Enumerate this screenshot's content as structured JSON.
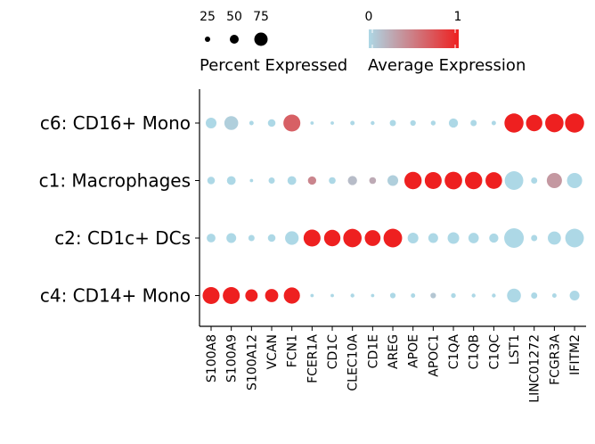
{
  "chart_data": {
    "type": "dotplot",
    "categories_x": [
      "S100A8",
      "S100A9",
      "S100A12",
      "VCAN",
      "FCN1",
      "FCER1A",
      "CD1C",
      "CLEC10A",
      "CD1E",
      "AREG",
      "APOE",
      "APOC1",
      "C1QA",
      "C1QB",
      "C1QC",
      "LST1",
      "LINC01272",
      "FCGR3A",
      "IFITM2"
    ],
    "categories_y": [
      "c6: CD16+ Mono",
      "c1: Macrophages",
      "c2: CD1c+ DCs",
      "c4: CD14+ Mono"
    ],
    "color_scale": {
      "low": "#add8e6",
      "high": "#ee2020",
      "min": 0,
      "max": 1
    },
    "size_scale": {
      "breaks": [
        25,
        50,
        75
      ],
      "max_percent": 100
    },
    "legend": {
      "size_title": "Percent Expressed",
      "size_labels": [
        "25",
        "50",
        "75"
      ],
      "color_title": "Average Expression",
      "color_labels": [
        "0",
        "1"
      ],
      "position": "top"
    },
    "points": [
      {
        "cluster": "c6: CD16+ Mono",
        "values": [
          [
            30,
            0.0
          ],
          [
            50,
            0.05
          ],
          [
            5,
            0.0
          ],
          [
            15,
            0.0
          ],
          [
            75,
            0.65
          ],
          [
            3,
            0.0
          ],
          [
            3,
            0.0
          ],
          [
            5,
            0.0
          ],
          [
            4,
            0.0
          ],
          [
            10,
            0.0
          ],
          [
            8,
            0.0
          ],
          [
            6,
            0.0
          ],
          [
            22,
            0.0
          ],
          [
            10,
            0.0
          ],
          [
            5,
            0.0
          ],
          [
            95,
            1.0
          ],
          [
            70,
            1.0
          ],
          [
            88,
            1.0
          ],
          [
            95,
            1.0
          ]
        ]
      },
      {
        "cluster": "c1: Macrophages",
        "values": [
          [
            15,
            0.0
          ],
          [
            20,
            0.0
          ],
          [
            3,
            0.0
          ],
          [
            10,
            0.0
          ],
          [
            20,
            0.0
          ],
          [
            18,
            0.45
          ],
          [
            12,
            0.0
          ],
          [
            22,
            0.15
          ],
          [
            12,
            0.25
          ],
          [
            30,
            0.05
          ],
          [
            78,
            1.0
          ],
          [
            75,
            1.0
          ],
          [
            80,
            1.0
          ],
          [
            78,
            1.0
          ],
          [
            72,
            1.0
          ],
          [
            90,
            0.0
          ],
          [
            10,
            0.0
          ],
          [
            60,
            0.35
          ],
          [
            60,
            0.0
          ]
        ]
      },
      {
        "cluster": "c2: CD1c+ DCs",
        "values": [
          [
            20,
            0.0
          ],
          [
            25,
            0.0
          ],
          [
            10,
            0.0
          ],
          [
            15,
            0.0
          ],
          [
            48,
            0.0
          ],
          [
            75,
            1.0
          ],
          [
            70,
            1.0
          ],
          [
            88,
            1.0
          ],
          [
            65,
            1.0
          ],
          [
            90,
            1.0
          ],
          [
            30,
            0.0
          ],
          [
            25,
            0.0
          ],
          [
            35,
            0.0
          ],
          [
            28,
            0.0
          ],
          [
            22,
            0.0
          ],
          [
            100,
            0.0
          ],
          [
            10,
            0.0
          ],
          [
            45,
            0.0
          ],
          [
            90,
            0.0
          ]
        ]
      },
      {
        "cluster": "c4: CD14+ Mono",
        "values": [
          [
            75,
            1.0
          ],
          [
            75,
            1.0
          ],
          [
            40,
            1.0
          ],
          [
            45,
            1.0
          ],
          [
            68,
            1.0
          ],
          [
            3,
            0.0
          ],
          [
            3,
            0.0
          ],
          [
            4,
            0.0
          ],
          [
            3,
            0.0
          ],
          [
            8,
            0.0
          ],
          [
            5,
            0.0
          ],
          [
            8,
            0.1
          ],
          [
            6,
            0.0
          ],
          [
            4,
            0.0
          ],
          [
            4,
            0.0
          ],
          [
            50,
            0.0
          ],
          [
            10,
            0.0
          ],
          [
            5,
            0.0
          ],
          [
            25,
            0.0
          ]
        ]
      }
    ]
  }
}
